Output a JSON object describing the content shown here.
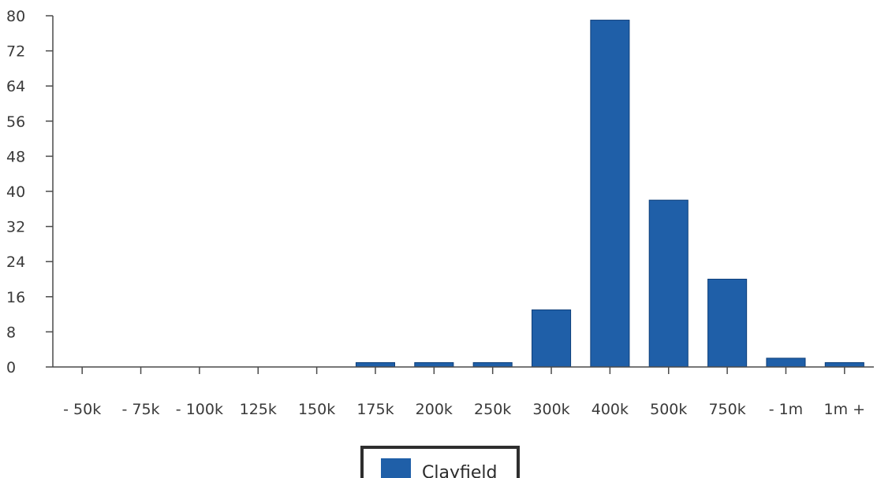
{
  "chart_data": {
    "type": "bar",
    "categories": [
      "- 50k",
      "- 75k",
      "- 100k",
      "125k",
      "150k",
      "175k",
      "200k",
      "250k",
      "300k",
      "400k",
      "500k",
      "750k",
      "- 1m",
      "1m +"
    ],
    "series": [
      {
        "name": "Clayfield",
        "color": "#1f5fa8",
        "values": [
          0,
          0,
          0,
          0,
          0,
          1,
          1,
          1,
          13,
          79,
          38,
          20,
          2,
          1
        ]
      }
    ],
    "ylim": [
      0,
      80
    ],
    "yticks": [
      0,
      8,
      16,
      24,
      32,
      40,
      48,
      56,
      64,
      72,
      80
    ],
    "title": "",
    "xlabel": "",
    "ylabel": "",
    "grid": false,
    "legend": "bottom-center"
  }
}
